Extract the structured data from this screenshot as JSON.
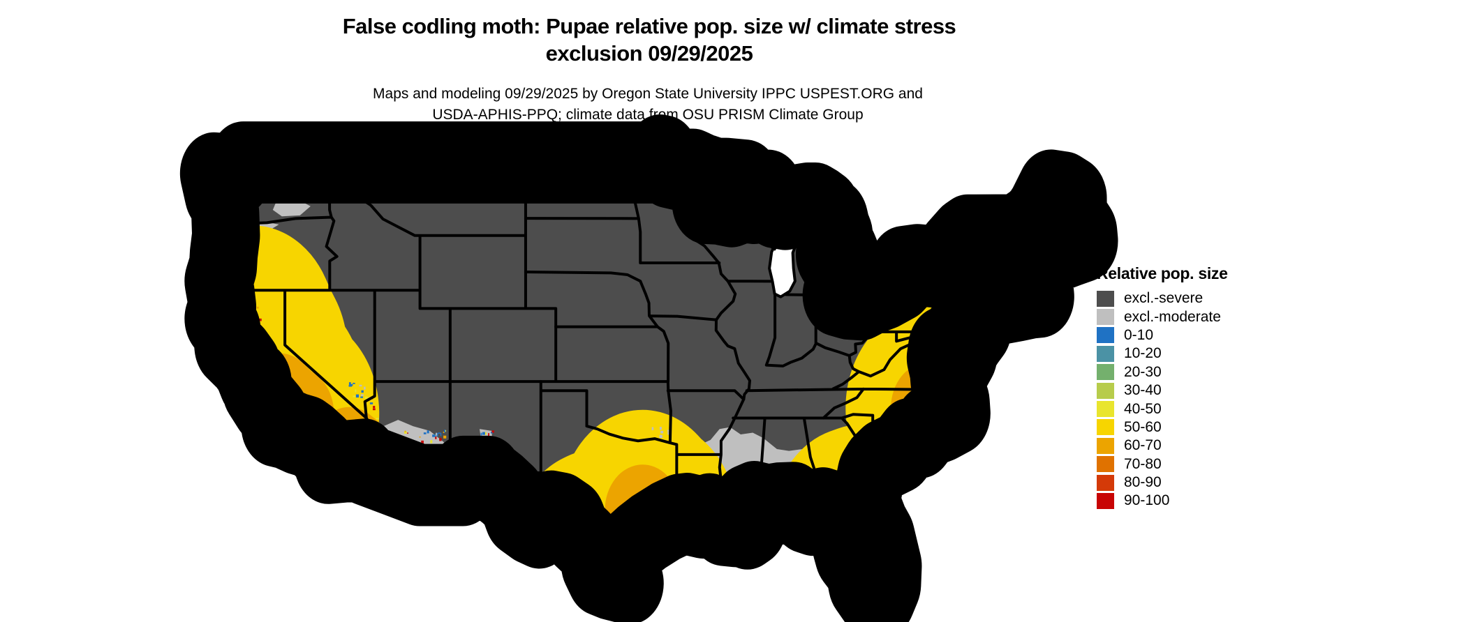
{
  "title": {
    "line1": "False codling moth: Pupae relative pop. size w/ climate stress",
    "line2": "exclusion 09/29/2025"
  },
  "subtitle": {
    "line1": "Maps and modeling 09/29/2025 by Oregon State University IPPC USPEST.ORG and",
    "line2": "USDA-APHIS-PPQ; climate data from OSU PRISM Climate Group"
  },
  "legend": {
    "title": "Relative pop. size",
    "items": [
      {
        "label": "excl.-severe",
        "color_key": "sev"
      },
      {
        "label": "excl.-moderate",
        "color_key": "mod"
      },
      {
        "label": "0-10",
        "color_key": "c0"
      },
      {
        "label": "10-20",
        "color_key": "c10"
      },
      {
        "label": "20-30",
        "color_key": "c20"
      },
      {
        "label": "30-40",
        "color_key": "c30"
      },
      {
        "label": "40-50",
        "color_key": "c40"
      },
      {
        "label": "50-60",
        "color_key": "c50"
      },
      {
        "label": "60-70",
        "color_key": "c60"
      },
      {
        "label": "70-80",
        "color_key": "c70"
      },
      {
        "label": "80-90",
        "color_key": "c80"
      },
      {
        "label": "90-100",
        "color_key": "c90"
      }
    ]
  },
  "map": {
    "type": "choropleth-raster",
    "region": "Contiguous United States",
    "classes_shown": "relative population size 0-100 plus climate-stress exclusion zones",
    "colors": {
      "sev": "#4d4d4d",
      "mod": "#bfbfbf",
      "c0": "#1f72c4",
      "c10": "#4b92a5",
      "c20": "#74b06d",
      "c30": "#b7cc4b",
      "c40": "#e9e52e",
      "c50": "#f7d500",
      "c60": "#eca400",
      "c70": "#e07200",
      "c80": "#d43a08",
      "c90": "#c80404"
    },
    "speckle_zones": [
      {
        "name": "ca-north-coast",
        "lon": [
          -124.25,
          -121.7
        ],
        "lat": [
          36.9,
          41.7
        ],
        "n": 60,
        "seed": 11,
        "colors": [
          "c90",
          "c40",
          "c0",
          "c60",
          "c50"
        ]
      },
      {
        "name": "ca-central-coast",
        "lon": [
          -122.5,
          -119.9
        ],
        "lat": [
          34.4,
          36.9
        ],
        "n": 45,
        "seed": 12,
        "colors": [
          "c0",
          "c90",
          "c40",
          "mod"
        ]
      },
      {
        "name": "ca-socal",
        "lon": [
          -121.2,
          -116.7
        ],
        "lat": [
          33.0,
          35.4
        ],
        "n": 110,
        "seed": 13,
        "colors": [
          "c90",
          "c40",
          "c0",
          "c60",
          "mod"
        ]
      },
      {
        "name": "channel-islands",
        "lon": [
          -120.4,
          -118.4
        ],
        "lat": [
          32.9,
          34.0
        ],
        "n": 12,
        "seed": 14,
        "colors": [
          "c0",
          "c90"
        ]
      },
      {
        "name": "az-south",
        "lon": [
          -113.7,
          -109.3
        ],
        "lat": [
          31.5,
          34.3
        ],
        "n": 95,
        "seed": 15,
        "colors": [
          "c0",
          "c90",
          "c40",
          "mod",
          "c60"
        ]
      },
      {
        "name": "az-river",
        "lon": [
          -114.7,
          -113.9
        ],
        "lat": [
          32.7,
          36.3
        ],
        "n": 18,
        "seed": 16,
        "colors": [
          "c0",
          "c90",
          "c40"
        ]
      },
      {
        "name": "nv-south",
        "lon": [
          -115.9,
          -114.2
        ],
        "lat": [
          35.9,
          37.1
        ],
        "n": 14,
        "seed": 17,
        "colors": [
          "c0",
          "c40",
          "mod"
        ]
      },
      {
        "name": "nm-rio-grande",
        "lon": [
          -107.3,
          -106.2
        ],
        "lat": [
          31.9,
          34.3
        ],
        "n": 20,
        "seed": 18,
        "colors": [
          "c0",
          "c90",
          "c40"
        ]
      },
      {
        "name": "tx-west",
        "lon": [
          -105.0,
          -102.6
        ],
        "lat": [
          29.4,
          31.4
        ],
        "n": 16,
        "seed": 19,
        "colors": [
          "c90",
          "c40",
          "c0"
        ]
      },
      {
        "name": "tx-south",
        "lon": [
          -99.6,
          -97.7
        ],
        "lat": [
          26.0,
          28.4
        ],
        "n": 40,
        "seed": 20,
        "colors": [
          "c90",
          "c40",
          "c60",
          "c0"
        ]
      },
      {
        "name": "tx-houston",
        "lon": [
          -96.6,
          -94.7
        ],
        "lat": [
          28.9,
          30.1
        ],
        "n": 26,
        "seed": 21,
        "colors": [
          "c90",
          "c40",
          "c0",
          "c60"
        ]
      },
      {
        "name": "la-coast",
        "lon": [
          -93.6,
          -89.3
        ],
        "lat": [
          29.3,
          30.25
        ],
        "n": 22,
        "seed": 22,
        "colors": [
          "c0",
          "c40",
          "c90"
        ]
      },
      {
        "name": "gulf-al",
        "lon": [
          -88.4,
          -86.9
        ],
        "lat": [
          30.25,
          30.5
        ],
        "n": 10,
        "seed": 23,
        "colors": [
          "c0",
          "c90",
          "c40"
        ]
      },
      {
        "name": "fl-peninsula",
        "lon": [
          -82.5,
          -80.6
        ],
        "lat": [
          25.6,
          29.3
        ],
        "n": 80,
        "seed": 24,
        "colors": [
          "c90",
          "c60",
          "c40",
          "c70",
          "c0"
        ]
      },
      {
        "name": "fl-north",
        "lon": [
          -83.6,
          -81.9
        ],
        "lat": [
          29.6,
          30.45
        ],
        "n": 22,
        "seed": 25,
        "colors": [
          "c90",
          "c40",
          "c60"
        ]
      },
      {
        "name": "nc-coast",
        "lon": [
          -77.5,
          -76.4
        ],
        "lat": [
          34.9,
          35.7
        ],
        "n": 20,
        "seed": 26,
        "colors": [
          "c90",
          "c40",
          "c0",
          "c60"
        ]
      },
      {
        "name": "outer-banks",
        "lon": [
          -75.9,
          -75.4
        ],
        "lat": [
          35.3,
          36.3
        ],
        "n": 6,
        "seed": 27,
        "colors": [
          "c0"
        ]
      },
      {
        "name": "or-coast",
        "lon": [
          -124.45,
          -123.95
        ],
        "lat": [
          42.3,
          46.5
        ],
        "n": 9,
        "seed": 28,
        "colors": [
          "c0",
          "c90",
          "mod"
        ]
      },
      {
        "name": "wa-coast",
        "lon": [
          -124.3,
          -123.8
        ],
        "lat": [
          46.2,
          47.2
        ],
        "n": 4,
        "seed": 29,
        "colors": [
          "c90",
          "c0"
        ]
      },
      {
        "name": "ok-se",
        "lon": [
          -95.7,
          -94.5
        ],
        "lat": [
          33.8,
          34.4
        ],
        "n": 6,
        "seed": 30,
        "colors": [
          "mod"
        ]
      },
      {
        "name": "me-coast",
        "lon": [
          -69.7,
          -67.5
        ],
        "lat": [
          43.9,
          44.55
        ],
        "n": 8,
        "seed": 31,
        "colors": [
          "mod"
        ]
      },
      {
        "name": "fl-keys",
        "lon": [
          -81.9,
          -80.5
        ],
        "lat": [
          24.55,
          24.95
        ],
        "n": 8,
        "seed": 32,
        "colors": [
          "c0"
        ]
      },
      {
        "name": "delmarva",
        "lon": [
          -75.8,
          -75.4
        ],
        "lat": [
          37.9,
          38.4
        ],
        "n": 3,
        "seed": 33,
        "colors": [
          "mod"
        ]
      },
      {
        "name": "cape-cod",
        "lon": [
          -70.5,
          -70.0
        ],
        "lat": [
          41.7,
          42.0
        ],
        "n": 3,
        "seed": 34,
        "colors": [
          "mod"
        ]
      }
    ]
  }
}
